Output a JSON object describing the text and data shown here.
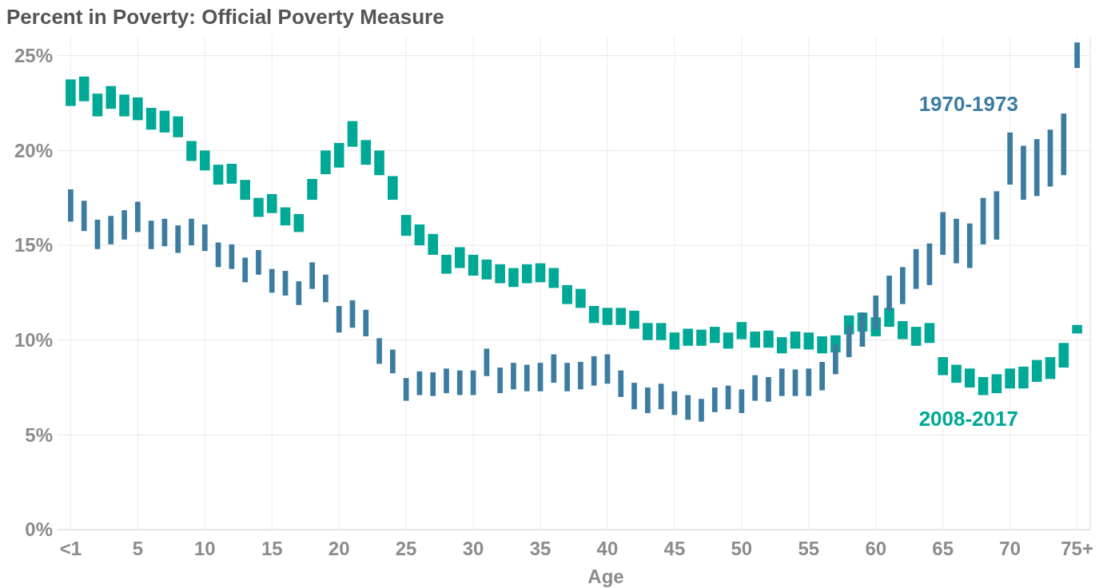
{
  "chart_data": {
    "type": "bar",
    "title": "Percent in Poverty: Official Poverty Measure",
    "xlabel": "Age",
    "categories": [
      "<1",
      null,
      null,
      null,
      null,
      "5",
      null,
      null,
      null,
      null,
      "10",
      null,
      null,
      null,
      null,
      "15",
      null,
      null,
      null,
      null,
      "20",
      null,
      null,
      null,
      null,
      "25",
      null,
      null,
      null,
      null,
      "30",
      null,
      null,
      null,
      null,
      "35",
      null,
      null,
      null,
      null,
      "40",
      null,
      null,
      null,
      null,
      "45",
      null,
      null,
      null,
      null,
      "50",
      null,
      null,
      null,
      null,
      "55",
      null,
      null,
      null,
      null,
      "60",
      null,
      null,
      null,
      null,
      "65",
      null,
      null,
      null,
      null,
      "70",
      null,
      null,
      null,
      null,
      "75+"
    ],
    "series": [
      {
        "name": "2008-2017",
        "color": "#00a896",
        "base": [
          22.35,
          22.6,
          21.8,
          22.2,
          21.8,
          21.6,
          21.1,
          20.95,
          20.7,
          19.45,
          18.95,
          18.2,
          18.25,
          17.4,
          16.5,
          16.7,
          16.05,
          15.7,
          17.4,
          18.75,
          19.1,
          20.2,
          19.25,
          18.7,
          17.4,
          15.5,
          15.0,
          14.5,
          13.5,
          13.8,
          13.4,
          13.2,
          13.0,
          12.8,
          13.0,
          13.05,
          12.75,
          11.9,
          11.7,
          10.9,
          10.8,
          10.8,
          10.6,
          10.0,
          10.0,
          9.5,
          9.7,
          9.7,
          9.85,
          9.55,
          10.05,
          9.6,
          9.6,
          9.3,
          9.55,
          9.5,
          9.3,
          9.35,
          10.3,
          10.45,
          10.2,
          10.7,
          10.05,
          9.7,
          9.85,
          8.15,
          7.75,
          7.5,
          7.1,
          7.2,
          7.45,
          7.45,
          7.8,
          7.95,
          8.55,
          10.35
        ],
        "values": [
          1.4,
          1.3,
          1.2,
          1.2,
          1.15,
          1.2,
          1.15,
          1.15,
          1.1,
          1.05,
          1.05,
          1.05,
          1.05,
          1.05,
          1.0,
          1.0,
          0.95,
          0.95,
          1.1,
          1.25,
          1.3,
          1.35,
          1.3,
          1.3,
          1.25,
          1.1,
          1.1,
          1.1,
          1.0,
          1.1,
          1.1,
          1.05,
          1.0,
          1.0,
          1.0,
          1.0,
          1.05,
          1.0,
          1.0,
          0.9,
          0.9,
          0.9,
          0.95,
          0.9,
          0.9,
          0.9,
          0.9,
          0.85,
          0.85,
          0.85,
          0.9,
          0.85,
          0.9,
          0.85,
          0.9,
          0.9,
          0.9,
          0.9,
          1.0,
          1.0,
          1.0,
          1.0,
          0.95,
          1.0,
          1.05,
          0.95,
          0.95,
          1.0,
          0.95,
          1.0,
          1.05,
          1.15,
          1.15,
          1.15,
          1.3,
          0.45
        ]
      },
      {
        "name": "1970-1973",
        "color": "#3d7ca1",
        "base": [
          16.25,
          15.75,
          14.8,
          15.05,
          15.3,
          15.7,
          14.8,
          14.95,
          14.6,
          15.0,
          14.7,
          13.85,
          13.75,
          13.05,
          13.45,
          12.5,
          12.35,
          11.85,
          12.7,
          12.0,
          10.4,
          10.65,
          10.2,
          8.75,
          8.25,
          6.8,
          7.1,
          7.05,
          7.2,
          7.1,
          7.1,
          8.1,
          7.2,
          7.4,
          7.3,
          7.3,
          7.75,
          7.3,
          7.4,
          7.6,
          7.7,
          7.0,
          6.35,
          6.15,
          6.35,
          6.05,
          5.8,
          5.7,
          6.2,
          6.35,
          6.15,
          6.8,
          6.75,
          7.05,
          7.05,
          7.05,
          7.35,
          8.2,
          9.1,
          9.65,
          10.55,
          11.55,
          11.9,
          12.7,
          12.9,
          14.5,
          14.05,
          13.8,
          15.05,
          15.3,
          18.2,
          17.4,
          17.6,
          18.1,
          18.7,
          24.35
        ],
        "values": [
          1.7,
          1.6,
          1.55,
          1.5,
          1.55,
          1.6,
          1.5,
          1.45,
          1.45,
          1.4,
          1.4,
          1.3,
          1.3,
          1.3,
          1.3,
          1.25,
          1.3,
          1.25,
          1.4,
          1.45,
          1.4,
          1.45,
          1.4,
          1.35,
          1.25,
          1.2,
          1.25,
          1.25,
          1.3,
          1.3,
          1.3,
          1.45,
          1.35,
          1.4,
          1.4,
          1.5,
          1.5,
          1.5,
          1.45,
          1.55,
          1.55,
          1.4,
          1.4,
          1.35,
          1.35,
          1.25,
          1.3,
          1.2,
          1.3,
          1.25,
          1.25,
          1.35,
          1.3,
          1.45,
          1.4,
          1.45,
          1.5,
          1.55,
          1.65,
          1.8,
          1.8,
          1.85,
          1.95,
          2.1,
          2.2,
          2.25,
          2.35,
          2.35,
          2.45,
          2.55,
          2.75,
          2.85,
          3.0,
          3.0,
          3.25,
          1.35
        ]
      }
    ],
    "ylim": [
      0,
      26
    ],
    "yticks": [
      {
        "value": 0,
        "label": "0%"
      },
      {
        "value": 5,
        "label": "5%"
      },
      {
        "value": 10,
        "label": "10%"
      },
      {
        "value": 15,
        "label": "15%"
      },
      {
        "value": 20,
        "label": "20%"
      },
      {
        "value": 25,
        "label": "25%"
      }
    ],
    "grid": true,
    "legend": false
  }
}
